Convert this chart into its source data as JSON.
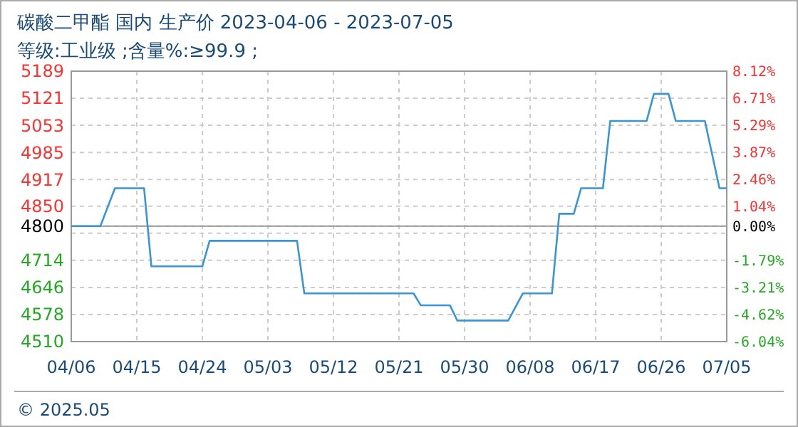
{
  "chart_data": {
    "type": "line",
    "title": "碳酸二甲酯 国内 生产价 2023-04-06 - 2023-07-05",
    "subtitle": "等级:工业级 ;含量%:≥99.9 ;",
    "annotations": [
      "© 2025.05"
    ],
    "x": [
      "2023-04-06",
      "2023-04-10",
      "2023-04-12",
      "2023-04-16",
      "2023-04-17",
      "2023-04-24",
      "2023-04-25",
      "2023-05-07",
      "2023-05-08",
      "2023-05-23",
      "2023-05-24",
      "2023-05-28",
      "2023-05-29",
      "2023-06-05",
      "2023-06-07",
      "2023-06-11",
      "2023-06-12",
      "2023-06-14",
      "2023-06-15",
      "2023-06-18",
      "2023-06-19",
      "2023-06-24",
      "2023-06-25",
      "2023-06-27",
      "2023-06-28",
      "2023-07-02",
      "2023-07-04",
      "2023-07-05"
    ],
    "series": [
      {
        "color": "#3a95d8",
        "values": [
          4800,
          4800,
          4895,
          4895,
          4699,
          4699,
          4763,
          4763,
          4631,
          4631,
          4601,
          4601,
          4563,
          4563,
          4631,
          4631,
          4831,
          4831,
          4895,
          4895,
          5064,
          5064,
          5132,
          5132,
          5064,
          5064,
          4895,
          4895
        ]
      }
    ],
    "xlim": [
      "2023-04-06",
      "2023-07-05"
    ],
    "xticks": [
      {
        "value": "2023-04-06",
        "label": "04/06"
      },
      {
        "value": "2023-04-15",
        "label": "04/15"
      },
      {
        "value": "2023-04-24",
        "label": "04/24"
      },
      {
        "value": "2023-05-03",
        "label": "05/03"
      },
      {
        "value": "2023-05-12",
        "label": "05/12"
      },
      {
        "value": "2023-05-21",
        "label": "05/21"
      },
      {
        "value": "2023-05-30",
        "label": "05/30"
      },
      {
        "value": "2023-06-08",
        "label": "06/08"
      },
      {
        "value": "2023-06-17",
        "label": "06/17"
      },
      {
        "value": "2023-06-26",
        "label": "06/26"
      },
      {
        "value": "2023-07-05",
        "label": "07/05"
      }
    ],
    "ylim": [
      4510,
      5189
    ],
    "yticks": [
      4510,
      4578,
      4646,
      4714,
      {
        "value": 4782,
        "label": null
      },
      4800,
      4850,
      4917,
      4985,
      5053,
      5121,
      5189
    ],
    "y2lim": [
      -6.04,
      8.12
    ],
    "y2ticks": [
      {
        "value": -6.04,
        "label": "-6.04%"
      },
      {
        "value": -4.62,
        "label": "-4.62%"
      },
      {
        "value": -3.21,
        "label": "-3.21%"
      },
      {
        "value": -1.79,
        "label": "-1.79%"
      },
      {
        "value": 0,
        "label": "0.00%"
      },
      {
        "value": 1.04,
        "label": "1.04%"
      },
      {
        "value": 2.46,
        "label": "2.46%"
      },
      {
        "value": 3.87,
        "label": "3.87%"
      },
      {
        "value": 5.29,
        "label": "5.29%"
      },
      {
        "value": 6.71,
        "label": "6.71%"
      },
      {
        "value": 8.12,
        "label": "8.12%"
      }
    ],
    "ref_lines": [
      {
        "axis": "y",
        "value": 4800,
        "color": "#999999"
      }
    ],
    "grid": true,
    "marker": "none",
    "line_style": "solid"
  }
}
